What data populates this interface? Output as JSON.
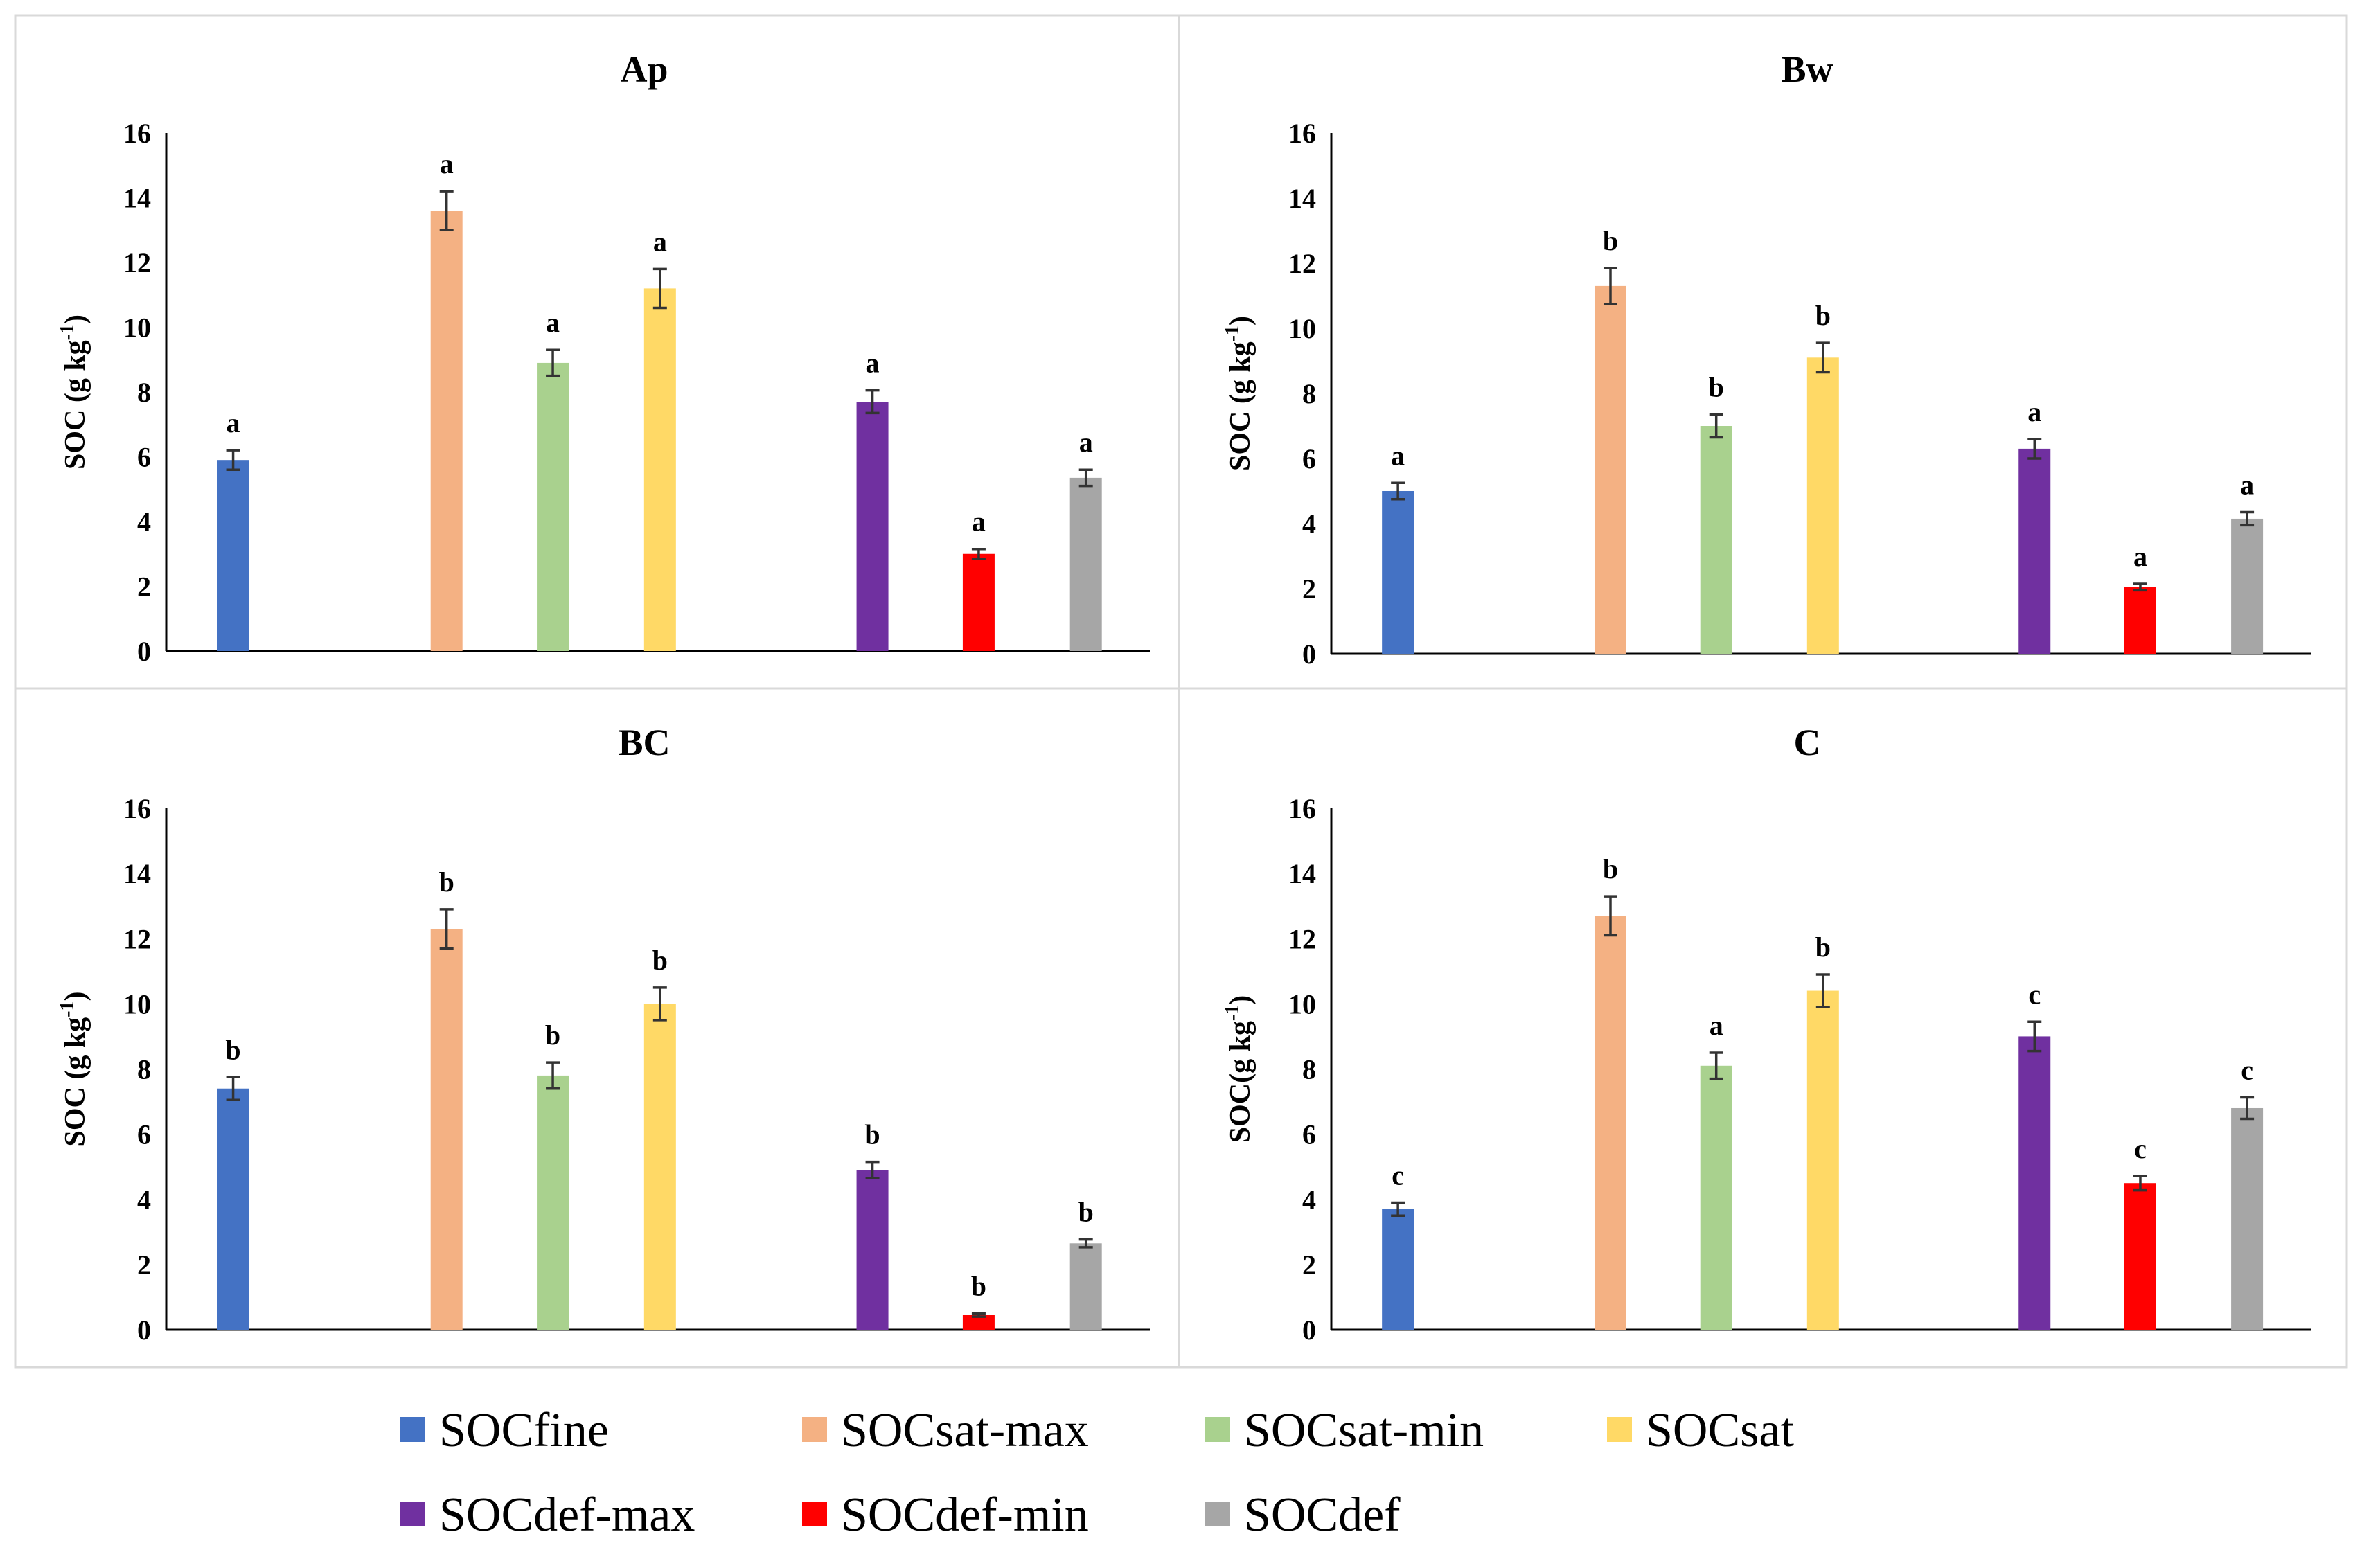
{
  "chart_data": [
    {
      "type": "bar",
      "title": "Ap",
      "ylabel": "SOC (g kg",
      "ylabel_sup": "-1",
      "ylabel_close": ")",
      "ylim": [
        0,
        16
      ],
      "yticks": [
        "0",
        "2",
        "4",
        "6",
        "8",
        "10",
        "12",
        "14",
        "16"
      ],
      "series": [
        {
          "name": "SOCfine",
          "value": 5.9,
          "error": 0.3,
          "sig": "a"
        },
        {
          "name": "SOCsat-max",
          "value": 13.6,
          "error": 0.6,
          "sig": "a"
        },
        {
          "name": "SOCsat-min",
          "value": 8.9,
          "error": 0.4,
          "sig": "a"
        },
        {
          "name": "SOCsat",
          "value": 11.2,
          "error": 0.6,
          "sig": "a"
        },
        {
          "name": "SOCdef-max",
          "value": 7.7,
          "error": 0.35,
          "sig": "a"
        },
        {
          "name": "SOCdef-min",
          "value": 3.0,
          "error": 0.15,
          "sig": "a"
        },
        {
          "name": "SOCdef",
          "value": 5.35,
          "error": 0.25,
          "sig": "a"
        }
      ]
    },
    {
      "type": "bar",
      "title": "Bw",
      "ylabel": "SOC (g kg",
      "ylabel_sup": "-1",
      "ylabel_close": ")",
      "ylim": [
        0,
        16
      ],
      "yticks": [
        "0",
        "2",
        "4",
        "6",
        "8",
        "10",
        "12",
        "14",
        "16"
      ],
      "series": [
        {
          "name": "SOCfine",
          "value": 5.0,
          "error": 0.25,
          "sig": "a"
        },
        {
          "name": "SOCsat-max",
          "value": 11.3,
          "error": 0.55,
          "sig": "b"
        },
        {
          "name": "SOCsat-min",
          "value": 7.0,
          "error": 0.35,
          "sig": "b"
        },
        {
          "name": "SOCsat",
          "value": 9.1,
          "error": 0.45,
          "sig": "b"
        },
        {
          "name": "SOCdef-max",
          "value": 6.3,
          "error": 0.3,
          "sig": "a"
        },
        {
          "name": "SOCdef-min",
          "value": 2.05,
          "error": 0.1,
          "sig": "a"
        },
        {
          "name": "SOCdef",
          "value": 4.15,
          "error": 0.2,
          "sig": "a"
        }
      ]
    },
    {
      "type": "bar",
      "title": "BC",
      "ylabel": "SOC (g kg",
      "ylabel_sup": "-1",
      "ylabel_close": ")",
      "ylim": [
        0,
        16
      ],
      "yticks": [
        "0",
        "2",
        "4",
        "6",
        "8",
        "10",
        "12",
        "14",
        "16"
      ],
      "series": [
        {
          "name": "SOCfine",
          "value": 7.4,
          "error": 0.35,
          "sig": "b"
        },
        {
          "name": "SOCsat-max",
          "value": 12.3,
          "error": 0.6,
          "sig": "b"
        },
        {
          "name": "SOCsat-min",
          "value": 7.8,
          "error": 0.4,
          "sig": "b"
        },
        {
          "name": "SOCsat",
          "value": 10.0,
          "error": 0.5,
          "sig": "b"
        },
        {
          "name": "SOCdef-max",
          "value": 4.9,
          "error": 0.25,
          "sig": "b"
        },
        {
          "name": "SOCdef-min",
          "value": 0.45,
          "error": 0.05,
          "sig": "b"
        },
        {
          "name": "SOCdef",
          "value": 2.65,
          "error": 0.12,
          "sig": "b"
        }
      ]
    },
    {
      "type": "bar",
      "title": "C",
      "ylabel": "SOC(g kg",
      "ylabel_sup": "-1",
      "ylabel_close": ")",
      "ylim": [
        0,
        16
      ],
      "yticks": [
        "0",
        "2",
        "4",
        "6",
        "8",
        "10",
        "12",
        "14",
        "16"
      ],
      "series": [
        {
          "name": "SOCfine",
          "value": 3.7,
          "error": 0.2,
          "sig": "c"
        },
        {
          "name": "SOCsat-max",
          "value": 12.7,
          "error": 0.6,
          "sig": "b"
        },
        {
          "name": "SOCsat-min",
          "value": 8.1,
          "error": 0.4,
          "sig": "a"
        },
        {
          "name": "SOCsat",
          "value": 10.4,
          "error": 0.5,
          "sig": "b"
        },
        {
          "name": "SOCdef-max",
          "value": 9.0,
          "error": 0.45,
          "sig": "c"
        },
        {
          "name": "SOCdef-min",
          "value": 4.5,
          "error": 0.22,
          "sig": "c"
        },
        {
          "name": "SOCdef",
          "value": 6.8,
          "error": 0.33,
          "sig": "c"
        }
      ]
    }
  ],
  "legend": [
    {
      "name": "SOCfine",
      "color": "#4472c4"
    },
    {
      "name": "SOCsat-max",
      "color": "#f4b183"
    },
    {
      "name": "SOCsat-min",
      "color": "#a9d18e"
    },
    {
      "name": "SOCsat",
      "color": "#ffd966"
    },
    {
      "name": "SOCdef-max",
      "color": "#7030a0"
    },
    {
      "name": "SOCdef-min",
      "color": "#ff0000"
    },
    {
      "name": "SOCdef",
      "color": "#a6a6a6"
    }
  ]
}
